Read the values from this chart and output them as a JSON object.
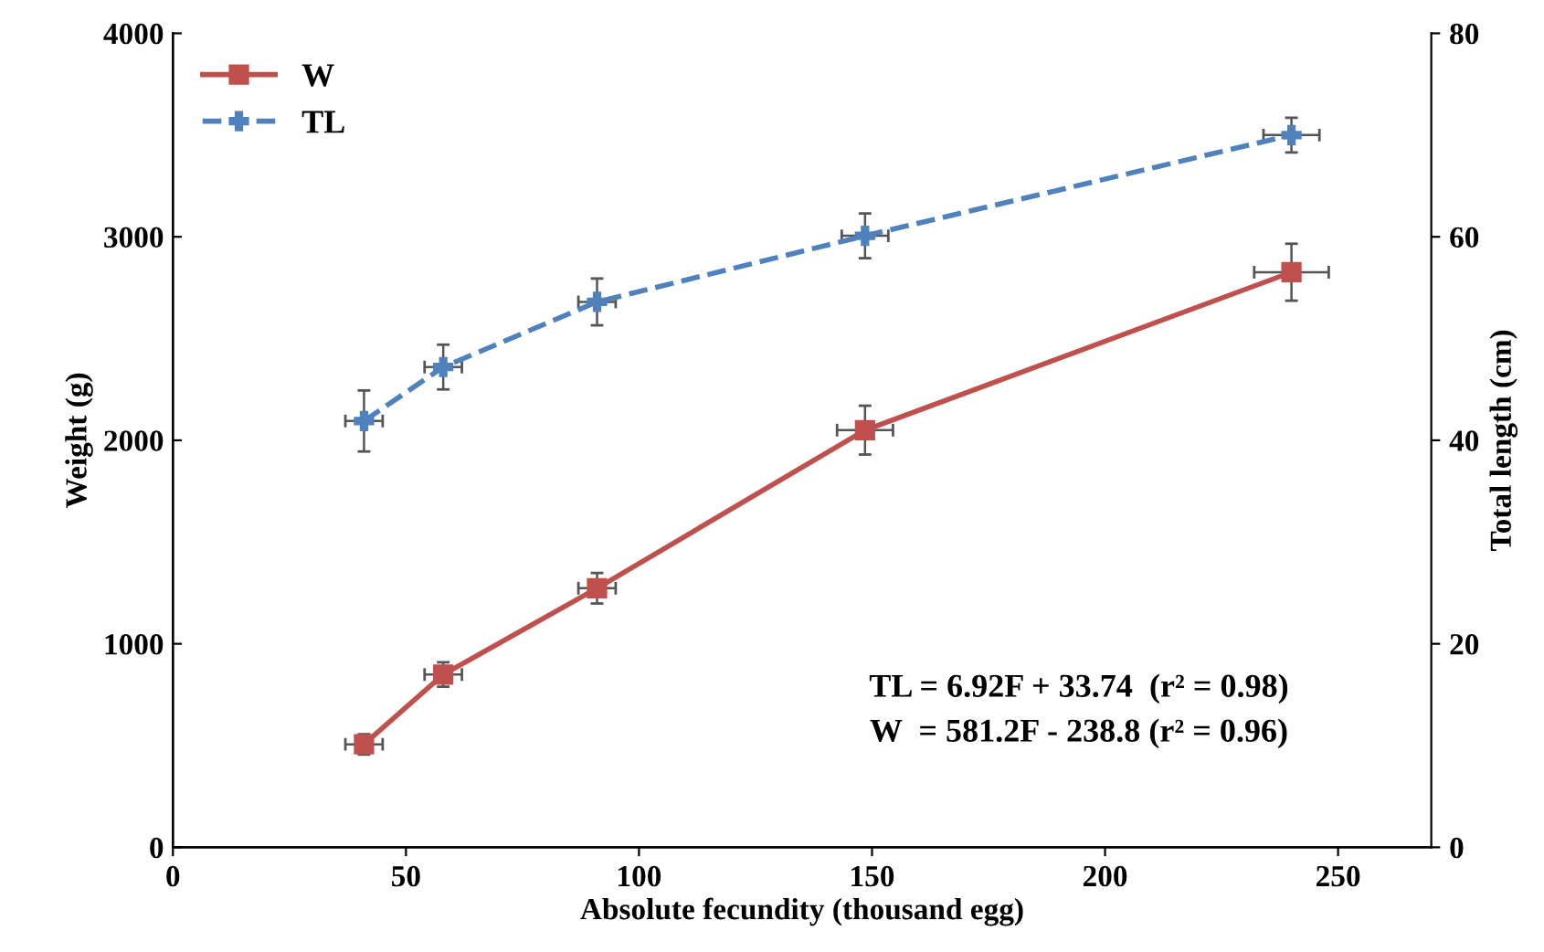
{
  "chart_data": {
    "type": "line",
    "xlabel": "Absolute fecundity (thousand egg)",
    "ylabel": "Weight (g)",
    "y2label": "Total length (cm)",
    "xlim": [
      0,
      270
    ],
    "xticks": [
      0,
      50,
      100,
      150,
      200,
      250
    ],
    "ylim": [
      0,
      4000
    ],
    "yticks": [
      0,
      1000,
      2000,
      3000,
      4000
    ],
    "y2lim": [
      0,
      80
    ],
    "y2ticks": [
      0,
      20,
      40,
      60,
      80
    ],
    "legend": "top left",
    "grid": false,
    "series": [
      {
        "name": "W",
        "color": "#c0504d",
        "marker": "square",
        "line_style": "solid",
        "x": [
          41,
          58,
          91,
          148.5,
          240
        ],
        "values": [
          506,
          849,
          1273,
          2050,
          2826
        ],
        "errors": [
          50,
          60,
          75,
          120,
          140
        ],
        "xerrors": [
          4,
          4,
          4,
          6,
          8
        ]
      },
      {
        "name": "TL",
        "color": "#4f81bd",
        "marker": "cross",
        "line_style": "dashed",
        "axis": "y2",
        "x": [
          41,
          58,
          91,
          148.5,
          240
        ],
        "values": [
          41.9,
          47.2,
          53.6,
          60.1,
          70
        ],
        "errors": [
          3,
          2.2,
          2.3,
          2.2,
          1.7
        ],
        "xerrors": [
          4,
          4,
          4,
          5,
          6
        ]
      }
    ],
    "annotations": [
      "TL = 6.92F + 33.74  (r² = 0.98)",
      "W  = 581.2F - 238.8 (r² = 0.96)"
    ]
  }
}
